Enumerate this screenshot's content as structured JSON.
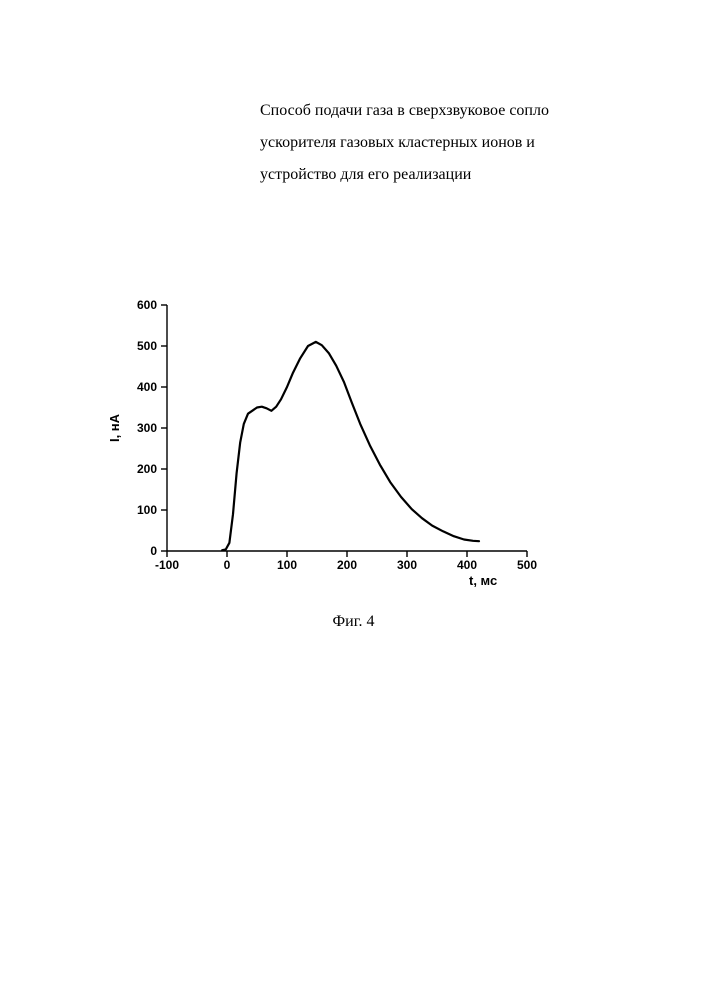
{
  "title": {
    "line1": "Способ подачи газа в сверхзвуковое сопло",
    "line2": "ускорителя газовых кластерных ионов и",
    "line3": "устройство для его реализации",
    "fontsize": 16,
    "font_family": "Times New Roman"
  },
  "figure_caption": "Фиг. 4",
  "chart": {
    "type": "line",
    "xlabel": "t, мс",
    "ylabel": "I, нА",
    "label_fontsize": 13,
    "tick_fontsize": 12,
    "xlim": [
      -100,
      500
    ],
    "ylim": [
      0,
      600
    ],
    "xtick_step": 100,
    "ytick_step": 100,
    "xticks": [
      -100,
      0,
      100,
      200,
      300,
      400,
      500
    ],
    "yticks": [
      0,
      100,
      200,
      300,
      400,
      500,
      600
    ],
    "background_color": "#ffffff",
    "axis_color": "#000000",
    "line_color": "#000000",
    "line_width": 2.2,
    "axis_width": 1.4,
    "tick_length_major": 6,
    "series": {
      "x": [
        -8,
        -2,
        4,
        10,
        16,
        22,
        28,
        35,
        42,
        50,
        58,
        66,
        74,
        82,
        90,
        100,
        110,
        122,
        135,
        148,
        158,
        170,
        182,
        195,
        208,
        222,
        238,
        255,
        272,
        290,
        308,
        325,
        342,
        360,
        378,
        395,
        410,
        420
      ],
      "y": [
        2,
        4,
        20,
        90,
        190,
        265,
        310,
        335,
        342,
        350,
        352,
        348,
        342,
        352,
        370,
        400,
        435,
        470,
        500,
        510,
        502,
        482,
        452,
        412,
        362,
        310,
        258,
        210,
        168,
        132,
        102,
        80,
        62,
        48,
        36,
        28,
        25,
        24
      ]
    }
  }
}
